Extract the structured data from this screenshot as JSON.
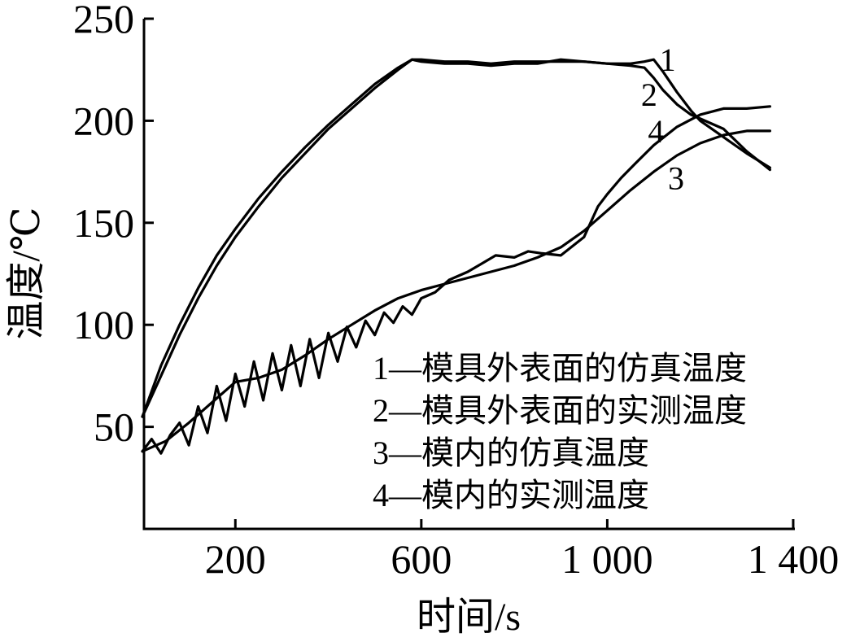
{
  "chart_data": {
    "type": "line",
    "xlabel": "时间/s",
    "ylabel": "温度/℃",
    "xlim": [
      0,
      1400
    ],
    "ylim": [
      0,
      250
    ],
    "xticks": [
      200,
      600,
      1000,
      1400
    ],
    "xtick_labels": [
      "200",
      "600",
      "1 000",
      "1 400"
    ],
    "yticks": [
      50,
      100,
      150,
      200,
      250
    ],
    "ytick_labels": [
      "50",
      "100",
      "150",
      "200",
      "250"
    ],
    "grid": false,
    "legend_position": "bottom-right",
    "legend": [
      "1—模具外表面的仿真温度",
      "2—模具外表面的实测温度",
      "3—模内的仿真温度",
      "4—模内的实测温度"
    ],
    "series": [
      {
        "name": "1",
        "x": [
          0,
          40,
          80,
          120,
          160,
          200,
          250,
          300,
          350,
          400,
          450,
          500,
          550,
          580,
          600,
          650,
          700,
          750,
          800,
          850,
          900,
          950,
          1000,
          1050,
          1080,
          1100,
          1120,
          1150,
          1180,
          1200,
          1250,
          1300,
          1350
        ],
        "y": [
          55,
          80,
          100,
          118,
          134,
          147,
          162,
          175,
          187,
          198,
          208,
          218,
          226,
          230,
          230,
          229,
          229,
          228,
          229,
          229,
          229,
          229,
          228,
          228,
          229,
          230,
          224,
          214,
          205,
          200,
          192,
          184,
          177
        ]
      },
      {
        "name": "2",
        "x": [
          0,
          40,
          80,
          120,
          160,
          200,
          250,
          300,
          350,
          400,
          450,
          500,
          550,
          580,
          600,
          650,
          700,
          750,
          800,
          850,
          900,
          950,
          1000,
          1050,
          1080,
          1100,
          1120,
          1150,
          1180,
          1200,
          1250,
          1300,
          1350
        ],
        "y": [
          55,
          75,
          95,
          113,
          129,
          143,
          158,
          172,
          184,
          196,
          206,
          216,
          225,
          230,
          229,
          228,
          228,
          227,
          228,
          228,
          230,
          229,
          228,
          227,
          226,
          221,
          215,
          208,
          203,
          201,
          196,
          185,
          176
        ]
      },
      {
        "name": "3",
        "x": [
          0,
          50,
          100,
          150,
          200,
          250,
          300,
          350,
          400,
          450,
          500,
          550,
          600,
          650,
          700,
          750,
          800,
          850,
          900,
          950,
          1000,
          1050,
          1100,
          1150,
          1200,
          1250,
          1300,
          1350
        ],
        "y": [
          38,
          43,
          52,
          62,
          72,
          74,
          78,
          85,
          93,
          100,
          107,
          113,
          117,
          120,
          123,
          126,
          129,
          133,
          138,
          146,
          156,
          166,
          175,
          183,
          189,
          193,
          195,
          195
        ]
      },
      {
        "name": "4",
        "x": [
          0,
          20,
          40,
          60,
          80,
          100,
          120,
          140,
          160,
          180,
          200,
          220,
          240,
          260,
          280,
          300,
          320,
          340,
          360,
          380,
          400,
          420,
          440,
          460,
          480,
          500,
          520,
          540,
          560,
          580,
          600,
          630,
          660,
          700,
          730,
          760,
          800,
          830,
          860,
          900,
          950,
          980,
          1000,
          1030,
          1060,
          1100,
          1150,
          1200,
          1250,
          1300,
          1350
        ],
        "y": [
          38,
          44,
          37,
          46,
          52,
          41,
          60,
          47,
          70,
          53,
          76,
          60,
          82,
          63,
          86,
          68,
          90,
          70,
          93,
          74,
          96,
          82,
          99,
          89,
          102,
          95,
          106,
          101,
          109,
          105,
          113,
          116,
          122,
          126,
          130,
          134,
          133,
          136,
          135,
          134,
          143,
          158,
          164,
          172,
          179,
          188,
          197,
          203,
          206,
          206,
          207
        ]
      }
    ],
    "series_labels": [
      {
        "text": "1",
        "series": "1",
        "at_x": 1130,
        "at_y": 230
      },
      {
        "text": "2",
        "series": "2",
        "at_x": 1090,
        "at_y": 213
      },
      {
        "text": "4",
        "series": "4",
        "at_x": 1105,
        "at_y": 195
      },
      {
        "text": "3",
        "series": "3",
        "at_x": 1148,
        "at_y": 172
      }
    ]
  }
}
